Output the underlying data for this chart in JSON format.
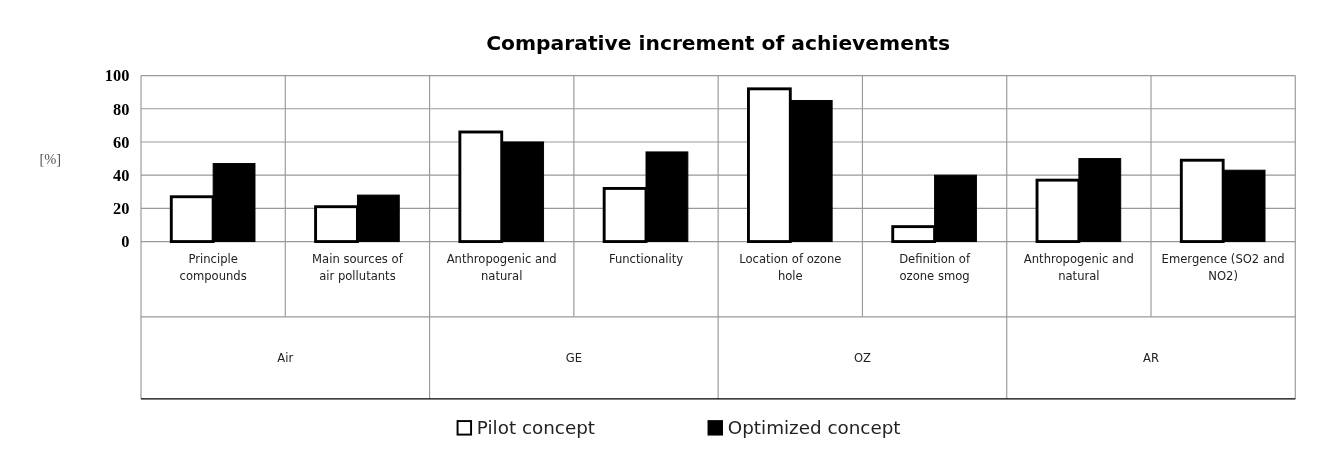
{
  "chart_data": {
    "type": "bar",
    "title": "Comparative increment of achievements",
    "ylabel": "[%]",
    "categories": [
      "Principle compounds",
      "Main sources of air pollutants",
      "Anthropogenic and natural",
      "Functionality",
      "Location of ozone hole",
      "Definition of ozone smog",
      "Anthropogenic and natural",
      "Emergence (SO2 and NO2)"
    ],
    "annotations": [
      "Air",
      "GE",
      "OZ",
      "AR"
    ],
    "series": [
      {
        "name": "Pilot concept",
        "color": "#ffffff",
        "values": [
          27,
          21,
          66,
          32,
          92,
          9,
          37,
          49
        ]
      },
      {
        "name": "Optimized concept",
        "color": "#000000",
        "values": [
          47,
          28,
          60,
          54,
          85,
          40,
          50,
          43
        ]
      }
    ],
    "ylim": [
      0,
      100
    ],
    "yticks": [
      0,
      20,
      40,
      60,
      80,
      100
    ],
    "grid": true,
    "legend": "bottom"
  }
}
